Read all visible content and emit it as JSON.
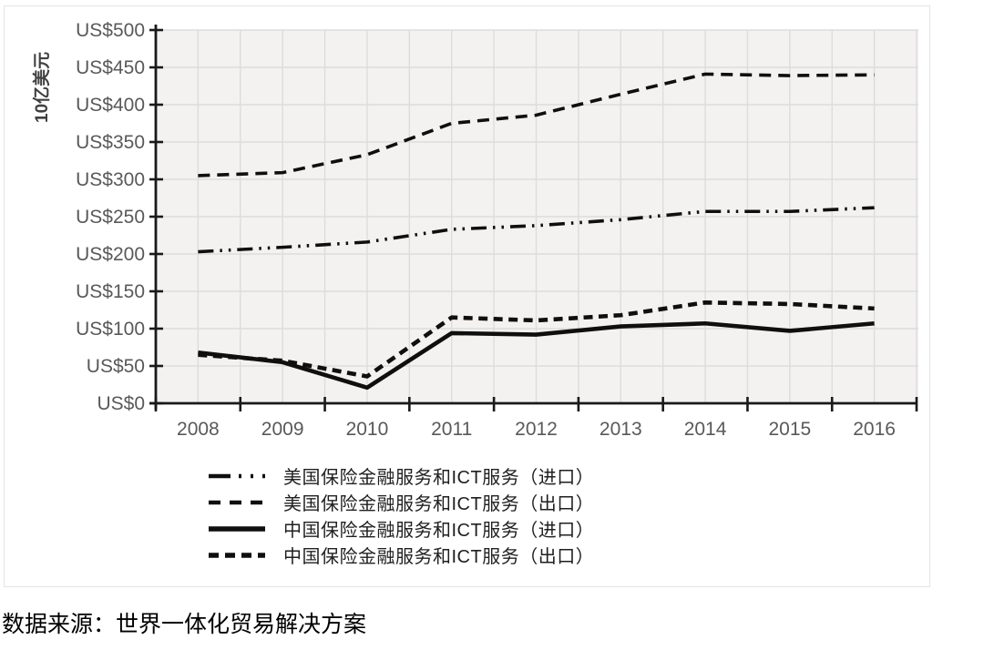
{
  "chart_data": {
    "type": "line",
    "title": "",
    "ylabel": "10亿美元",
    "xlabel": "",
    "y_tick_prefix": "US$",
    "ylim": [
      0,
      500
    ],
    "y_tick_step": 50,
    "y_ticks_labels": [
      "US$0",
      "US$50",
      "US$100",
      "US$150",
      "US$200",
      "US$250",
      "US$300",
      "US$350",
      "US$400",
      "US$450",
      "US$500"
    ],
    "categories": [
      "2008",
      "2009",
      "2010",
      "2011",
      "2012",
      "2013",
      "2014",
      "2015",
      "2016"
    ],
    "grid": "horizontal major + vertical minor, shown on light gray plot background",
    "legend_position": "bottom-left",
    "series": [
      {
        "name": "美国保险金融服务和ICT服务（进口）",
        "style": "dash-dot-dot",
        "values": [
          203,
          209,
          216,
          233,
          238,
          246,
          257,
          257,
          262
        ]
      },
      {
        "name": "美国保险金融服务和ICT服务（出口）",
        "style": "dashed",
        "values": [
          305,
          309,
          333,
          375,
          386,
          414,
          441,
          439,
          440
        ]
      },
      {
        "name": "中国保险金融服务和ICT服务（进口）",
        "style": "solid",
        "values": [
          68,
          55,
          21,
          94,
          92,
          103,
          107,
          97,
          107
        ]
      },
      {
        "name": "中国保险金融服务和ICT服务（出口）",
        "style": "short-dash",
        "values": [
          65,
          57,
          36,
          115,
          111,
          118,
          135,
          133,
          127
        ]
      }
    ],
    "source_note": "数据来源：世界一体化贸易解决方案"
  },
  "colors": {
    "line": "#0f0f0f",
    "axis": "#1a1a1a",
    "tick_label": "#595959",
    "axis_title": "#404040",
    "plot_bg": "#f3f2f1",
    "gridline": "#dddcdb",
    "frame_border": "#e4e4e4"
  }
}
